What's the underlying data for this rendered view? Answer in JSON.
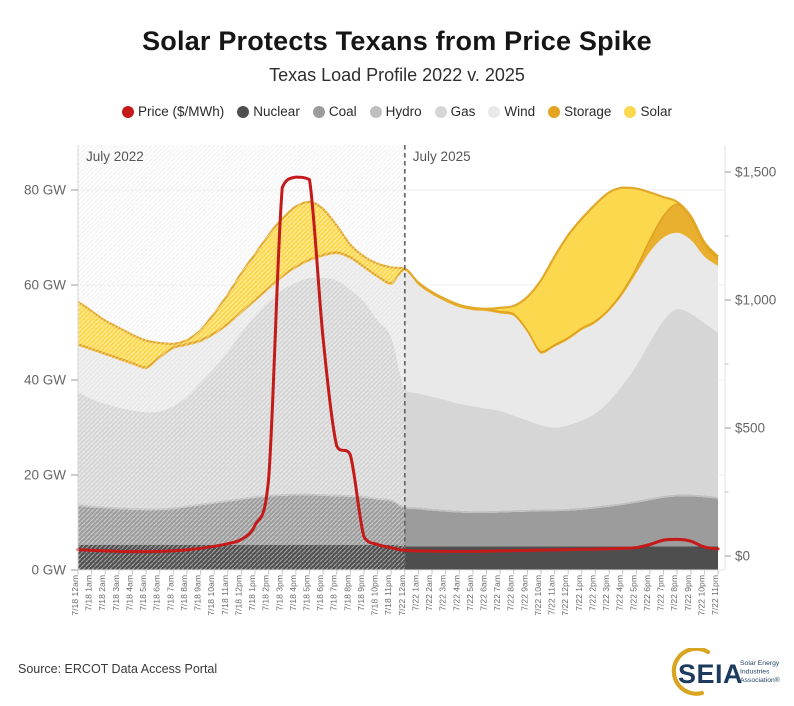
{
  "header": {
    "title": "Solar Protects Texans from Price Spike",
    "subtitle": "Texas Load Profile 2022 v. 2025"
  },
  "legend": {
    "items": [
      {
        "label": "Price ($/MWh)",
        "color": "#c41a1a"
      },
      {
        "label": "Nuclear",
        "color": "#4e4e4e"
      },
      {
        "label": "Coal",
        "color": "#9c9c9c"
      },
      {
        "label": "Hydro",
        "color": "#bfbfbf"
      },
      {
        "label": "Gas",
        "color": "#d6d6d6"
      },
      {
        "label": "Wind",
        "color": "#e9e9e9"
      },
      {
        "label": "Storage",
        "color": "#e3a421"
      },
      {
        "label": "Solar",
        "color": "#fbd84e"
      }
    ]
  },
  "chart_data": {
    "type": "combo-stacked-area-line",
    "title": "Texas Load Profile 2022 v. 2025",
    "unit_left": "GW",
    "unit_right": "$/MWh",
    "categories": [
      "7/18 12am",
      "7/18 1am",
      "7/18 2am",
      "7/18 3am",
      "7/18 4am",
      "7/18 5am",
      "7/18 6am",
      "7/18 7am",
      "7/18 8am",
      "7/18 9am",
      "7/18 10am",
      "7/18 11am",
      "7/18 12pm",
      "7/18 1pm",
      "7/18 2pm",
      "7/18 3pm",
      "7/18 4pm",
      "7/18 5pm",
      "7/18 6pm",
      "7/18 7pm",
      "7/18 8pm",
      "7/18 9pm",
      "7/18 10pm",
      "7/18 11pm",
      "7/22 12am",
      "7/22 1am",
      "7/22 2am",
      "7/22 3am",
      "7/22 4am",
      "7/22 5am",
      "7/22 6am",
      "7/22 7am",
      "7/22 8am",
      "7/22 9am",
      "7/22 10am",
      "7/22 11am",
      "7/22 12pm",
      "7/22 1pm",
      "7/22 2pm",
      "7/22 3pm",
      "7/22 4pm",
      "7/22 5pm",
      "7/22 6pm",
      "7/22 7pm",
      "7/22 8pm",
      "7/22 9pm",
      "7/22 10pm",
      "7/22 11pm"
    ],
    "left_axis": {
      "label_format": "GW",
      "values": [
        0,
        20,
        40,
        60,
        80
      ],
      "ticks": [
        "0 GW",
        "20 GW",
        "40 GW",
        "60 GW",
        "80 GW"
      ]
    },
    "right_axis": {
      "label_format": "$",
      "values": [
        0,
        500,
        1000,
        1500
      ],
      "ticks": [
        "$0",
        "$500",
        "$1,000",
        "$1,500"
      ],
      "minor": [
        250,
        750,
        1250
      ]
    },
    "annotations": [
      {
        "label": "July 2022",
        "at_index": 0
      },
      {
        "label": "July 2025",
        "at_index": 24
      }
    ],
    "separator_index": 24,
    "hatched_region": "July 2022",
    "grid": "horizontal",
    "series": [
      {
        "name": "Nuclear",
        "type": "area",
        "axis": "left",
        "color": "#4e4e4e",
        "values": [
          5.3,
          5.3,
          5.3,
          5.3,
          5.3,
          5.3,
          5.3,
          5.3,
          5.3,
          5.3,
          5.3,
          5.3,
          5.3,
          5.3,
          5.3,
          5.3,
          5.3,
          5.3,
          5.3,
          5.3,
          5.3,
          5.3,
          5.3,
          5.3,
          5,
          5,
          5,
          5,
          5,
          5,
          5,
          5,
          5,
          5,
          5,
          5,
          5,
          5,
          5,
          5,
          5,
          5,
          5,
          5,
          5,
          5,
          5,
          5
        ]
      },
      {
        "name": "Coal",
        "type": "area",
        "axis": "left",
        "color": "#9c9c9c",
        "values": [
          8.2,
          7.9,
          7.7,
          7.5,
          7.4,
          7.3,
          7.3,
          7.5,
          7.9,
          8.3,
          8.7,
          9.1,
          9.5,
          9.9,
          10.2,
          10.3,
          10.4,
          10.4,
          10.3,
          10.2,
          10.1,
          9.9,
          9.5,
          9.2,
          8,
          7.8,
          7.5,
          7.3,
          7.1,
          7,
          7,
          7.1,
          7.2,
          7.3,
          7.4,
          7.4,
          7.5,
          7.7,
          8,
          8.3,
          8.7,
          9.2,
          9.7,
          10.2,
          10.5,
          10.5,
          10.3,
          10
        ]
      },
      {
        "name": "Hydro",
        "type": "area",
        "axis": "left",
        "color": "#bfbfbf",
        "values": [
          0.4,
          0.4,
          0.4,
          0.4,
          0.4,
          0.4,
          0.4,
          0.4,
          0.4,
          0.4,
          0.4,
          0.4,
          0.4,
          0.4,
          0.4,
          0.4,
          0.4,
          0.4,
          0.4,
          0.4,
          0.4,
          0.4,
          0.4,
          0.4,
          0.4,
          0.4,
          0.4,
          0.4,
          0.4,
          0.4,
          0.4,
          0.4,
          0.4,
          0.4,
          0.4,
          0.4,
          0.4,
          0.4,
          0.4,
          0.4,
          0.4,
          0.4,
          0.4,
          0.4,
          0.4,
          0.4,
          0.4,
          0.4
        ]
      },
      {
        "name": "Gas",
        "type": "area",
        "axis": "left",
        "color": "#d6d6d6",
        "values": [
          23.6,
          22.4,
          21.6,
          21,
          20.5,
          20.2,
          20.4,
          21.3,
          22.9,
          25.5,
          28.1,
          31.2,
          34.8,
          37.9,
          40.6,
          43,
          44.4,
          45.4,
          45.5,
          45.1,
          43.2,
          40.9,
          37.3,
          34.1,
          24.6,
          24,
          23.6,
          23.1,
          22.5,
          22.1,
          21.6,
          21,
          19.9,
          18.8,
          17.7,
          17.2,
          17.6,
          18.4,
          19.6,
          21.8,
          24.9,
          28.4,
          32.9,
          36.9,
          39.1,
          38.1,
          36.3,
          34.6
        ]
      },
      {
        "name": "Wind",
        "type": "area",
        "axis": "left",
        "color": "#e9e9e9",
        "values": [
          9.7,
          10.2,
          10.2,
          10,
          9.6,
          9.1,
          11.1,
          12,
          10.7,
          8.5,
          7,
          5.5,
          4,
          3,
          2.5,
          2.5,
          3,
          3.5,
          4.5,
          5.5,
          6.5,
          7,
          9,
          11,
          25,
          22.8,
          21.5,
          20.7,
          20.3,
          20.2,
          20.5,
          20.5,
          21,
          18.5,
          15,
          17,
          18,
          19,
          19,
          19,
          19,
          19.5,
          19,
          17.5,
          16,
          15.5,
          14,
          14
        ]
      },
      {
        "name": "Storage",
        "type": "area",
        "axis": "left",
        "color": "#e9af2e",
        "values": [
          0.4,
          0.4,
          0.4,
          0.4,
          0.4,
          0.4,
          0.4,
          0.4,
          0.4,
          0.4,
          0.4,
          0.4,
          0.4,
          0.4,
          0.4,
          0.4,
          0.4,
          0.4,
          0.4,
          0.4,
          0.4,
          0.4,
          0.4,
          0.4,
          0.4,
          0.4,
          0.4,
          0.4,
          0.4,
          0.4,
          0.4,
          0.4,
          0.4,
          0.4,
          0.4,
          0.4,
          0.4,
          0.4,
          0.4,
          0.4,
          0.6,
          1,
          2.5,
          4.5,
          6,
          4.5,
          2.5,
          1.5
        ]
      },
      {
        "name": "Solar",
        "type": "area",
        "axis": "left",
        "color": "#fbd84e",
        "values": [
          8.9,
          7.9,
          6.9,
          6.4,
          5.9,
          5.6,
          2.9,
          0.7,
          0.8,
          2.1,
          4.1,
          6.1,
          8.1,
          9.6,
          11.1,
          12.1,
          12.6,
          12.1,
          9.6,
          5.6,
          2.6,
          2.1,
          2.6,
          3.3,
          0.1,
          0.1,
          0.1,
          0.1,
          0.1,
          0.1,
          0.1,
          0.8,
          1.7,
          7.1,
          15.1,
          18.6,
          21.6,
          23.1,
          24.6,
          24.6,
          21.9,
          16.8,
          10,
          4,
          0.5,
          0.5,
          0.5,
          0.5
        ]
      },
      {
        "name": "Price ($/MWh)",
        "type": "line",
        "axis": "right",
        "color": "#c41a1a",
        "values": [
          25,
          22,
          20,
          18,
          17,
          17,
          18,
          20,
          24,
          30,
          38,
          48,
          65,
          120,
          300,
          1440,
          1480,
          1470,
          850,
          430,
          395,
          75,
          45,
          32,
          22,
          20,
          19,
          18,
          18,
          18,
          19,
          20,
          21,
          22,
          23,
          24,
          25,
          26,
          27,
          28,
          30,
          33,
          45,
          62,
          65,
          58,
          35,
          28
        ]
      }
    ],
    "style": {
      "solar_edge": "#e2a82a",
      "storage_edge": "#dfa21f",
      "separator_color": "#666666",
      "grid_color": "#ececec",
      "axis_text": "#666666"
    }
  },
  "footer": {
    "source": "Source: ERCOT Data Access Portal",
    "logo": {
      "text": "SEIA",
      "tagline_lines": [
        "Solar Energy",
        "Industries",
        "Association®"
      ],
      "navy": "#1c3b5e",
      "gold": "#d9a520"
    }
  }
}
